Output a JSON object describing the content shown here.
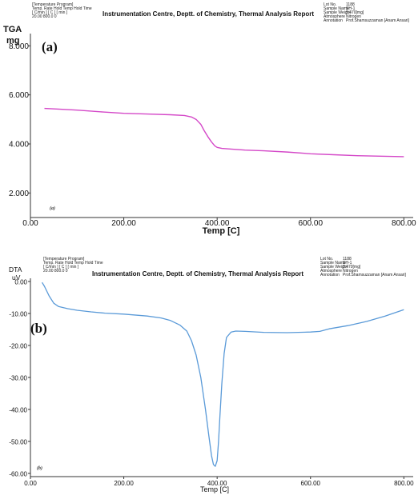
{
  "chart_data": [
    {
      "type": "line",
      "panel_label": "(a)",
      "inner_label": "(a)",
      "header": {
        "title": "Instrumentation Centre, Deptt. of Chemistry, Thermal Analysis Report",
        "program_lines": [
          "[Temperature Program]",
          "Temp. Rate Hold Temp Hold Time",
          "[ C/min ]  [  C  ]  [ min ]",
          "20.00   800.0   0"
        ],
        "info_labels": [
          "Lot No.",
          "Sample Name",
          "Sample Weight",
          "Atmosphere",
          "Annotation"
        ],
        "info_values": [
          "1188",
          "SH-1",
          "5.470[mg]",
          "Nitrogen",
          "Prof.Shamsuzzaman [Anam Ansari]"
        ]
      },
      "ylabel": "TGA",
      "yunit": "mg",
      "xlabel": "Temp  [C]",
      "xlim": [
        0,
        820
      ],
      "ylim": [
        1.0,
        8.5
      ],
      "xticks": [
        0,
        200,
        400,
        600,
        800
      ],
      "xtick_labels": [
        "0.00",
        "200.00",
        "400.00",
        "600.00",
        "800.00"
      ],
      "yticks": [
        2,
        4,
        6,
        8
      ],
      "ytick_labels": [
        "2.000",
        "4.000",
        "6.000",
        "8.000"
      ],
      "color": "#d448c8",
      "series": [
        {
          "x": [
            30,
            60,
            100,
            150,
            200,
            250,
            300,
            330,
            345,
            355,
            365,
            372,
            380,
            388,
            395,
            400,
            410,
            430,
            460,
            500,
            550,
            600,
            650,
            700,
            750,
            800
          ],
          "y": [
            5.45,
            5.42,
            5.38,
            5.31,
            5.25,
            5.22,
            5.19,
            5.16,
            5.1,
            5.0,
            4.8,
            4.55,
            4.3,
            4.08,
            3.92,
            3.86,
            3.82,
            3.79,
            3.75,
            3.72,
            3.67,
            3.6,
            3.56,
            3.52,
            3.5,
            3.48
          ]
        }
      ]
    },
    {
      "type": "line",
      "panel_label": "(b)",
      "inner_label": "(b)",
      "header": {
        "title": "Instrumentation Centre, Deptt. of Chemistry, Thermal Analysis Report",
        "program_lines": [
          "[Temperature Program]",
          "Temp. Rate Hold Temp Hold Time",
          "[ C/min ]  [  C  ]  [ min ]",
          "20.00   800.0   0"
        ],
        "info_labels": [
          "Lot No.",
          "Sample Name",
          "Sample Weight",
          "Atmosphere",
          "Annotation"
        ],
        "info_values": [
          "1188",
          "SH-1",
          "5.470[mg]",
          "Nitrogen",
          "Prof.Shamsuzzaman [Anam Ansari]"
        ]
      },
      "ylabel": "DTA",
      "yunit": "uV",
      "xlabel": "Temp  [C]",
      "xlim": [
        0,
        820
      ],
      "ylim": [
        -61,
        1
      ],
      "xticks": [
        0,
        200,
        400,
        600,
        800
      ],
      "xtick_labels": [
        "0.00",
        "200.00",
        "400.00",
        "600.00",
        "800.00"
      ],
      "yticks": [
        0,
        -10,
        -20,
        -30,
        -40,
        -50,
        -60
      ],
      "ytick_labels": [
        "0.00",
        "-10.00",
        "-20.00",
        "-30.00",
        "-40.00",
        "-50.00",
        "-60.00"
      ],
      "color": "#5a9ad8",
      "series": [
        {
          "x": [
            25,
            30,
            40,
            50,
            60,
            80,
            100,
            130,
            160,
            200,
            250,
            280,
            300,
            320,
            335,
            345,
            355,
            365,
            375,
            382,
            388,
            392,
            396,
            400,
            403,
            406,
            410,
            415,
            420,
            430,
            440,
            460,
            500,
            550,
            600,
            620,
            640,
            680,
            720,
            760,
            800
          ],
          "y": [
            -0.3,
            -1.5,
            -4.5,
            -6.8,
            -7.8,
            -8.5,
            -9.0,
            -9.5,
            -9.9,
            -10.2,
            -10.8,
            -11.4,
            -12.2,
            -13.6,
            -15.5,
            -18.5,
            -23.0,
            -30.0,
            -40.0,
            -48.0,
            -54.5,
            -57.2,
            -57.8,
            -56.0,
            -50.0,
            -42.0,
            -32.0,
            -22.5,
            -17.5,
            -15.8,
            -15.5,
            -15.6,
            -15.9,
            -16.0,
            -15.8,
            -15.6,
            -14.8,
            -13.8,
            -12.5,
            -10.8,
            -8.8
          ]
        }
      ]
    }
  ]
}
